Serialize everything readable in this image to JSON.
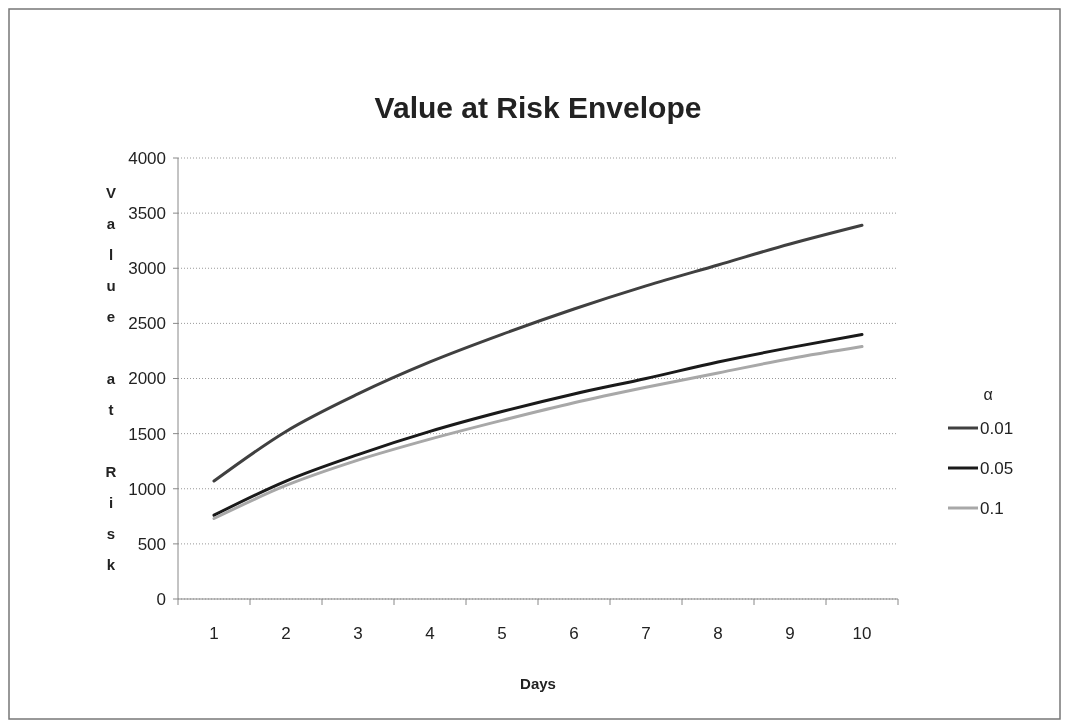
{
  "chart_data": {
    "type": "line",
    "title": "Value at Risk Envelope",
    "xlabel": "Days",
    "ylabel": "Value at Risk",
    "legend_title": "α",
    "legend": "right",
    "grid": "y",
    "line_style": "solid",
    "marker": "none",
    "categories": [
      "1",
      "2",
      "3",
      "4",
      "5",
      "6",
      "7",
      "8",
      "9",
      "10"
    ],
    "ylim": [
      0,
      4000
    ],
    "yticks": [
      0,
      500,
      1000,
      1500,
      2000,
      2500,
      3000,
      3500,
      4000
    ],
    "series": [
      {
        "name": "0.01",
        "color": "#404040",
        "values": [
          1070,
          1520,
          1860,
          2150,
          2400,
          2630,
          2840,
          3030,
          3220,
          3390
        ]
      },
      {
        "name": "0.05",
        "color": "#1a1a1a",
        "values": [
          760,
          1070,
          1310,
          1520,
          1700,
          1860,
          2000,
          2150,
          2280,
          2400
        ]
      },
      {
        "name": "0.1",
        "color": "#a8a8a8",
        "values": [
          730,
          1030,
          1260,
          1450,
          1620,
          1780,
          1920,
          2050,
          2180,
          2290
        ]
      }
    ]
  }
}
